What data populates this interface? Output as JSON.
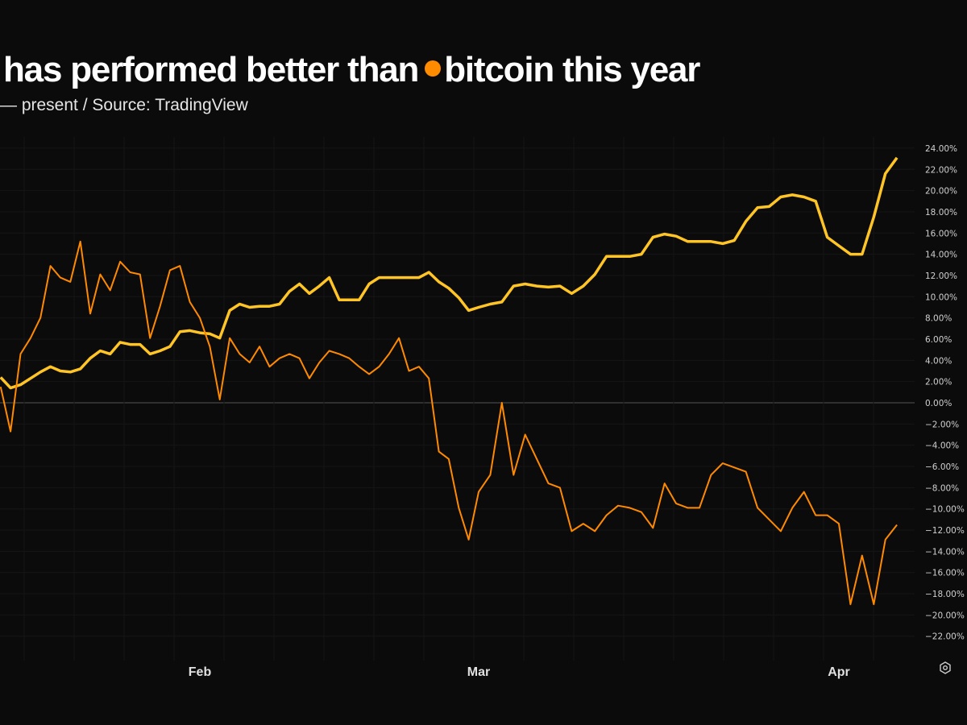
{
  "chart_data": {
    "type": "line",
    "title": {
      "part1": "has performed better than",
      "part2": "bitcoin this year"
    },
    "subtitle": "— present / Source: TradingView",
    "xlabel": "",
    "ylabel": "",
    "x_ticks": [
      {
        "date": "2025-02-01",
        "label": "Feb"
      },
      {
        "date": "2025-03-01",
        "label": "Mar"
      },
      {
        "date": "2025-04-01",
        "label": "Apr"
      }
    ],
    "ylim": [
      -24,
      26
    ],
    "y_ticks": [
      24,
      22,
      20,
      18,
      16,
      14,
      12,
      10,
      8,
      6,
      4,
      2,
      0,
      -2,
      -4,
      -6,
      -8,
      -10,
      -12,
      -14,
      -16,
      -18,
      -20,
      -22
    ],
    "y_tick_format": "percent-2dp",
    "grid": true,
    "zero_line": true,
    "dates": [
      "2025-01-12",
      "2025-01-13",
      "2025-01-14",
      "2025-01-15",
      "2025-01-16",
      "2025-01-17",
      "2025-01-18",
      "2025-01-19",
      "2025-01-20",
      "2025-01-21",
      "2025-01-22",
      "2025-01-23",
      "2025-01-24",
      "2025-01-25",
      "2025-01-26",
      "2025-01-27",
      "2025-01-28",
      "2025-01-29",
      "2025-01-30",
      "2025-01-31",
      "2025-02-01",
      "2025-02-02",
      "2025-02-03",
      "2025-02-04",
      "2025-02-05",
      "2025-02-06",
      "2025-02-07",
      "2025-02-08",
      "2025-02-09",
      "2025-02-10",
      "2025-02-11",
      "2025-02-12",
      "2025-02-13",
      "2025-02-14",
      "2025-02-15",
      "2025-02-16",
      "2025-02-17",
      "2025-02-18",
      "2025-02-19",
      "2025-02-20",
      "2025-02-21",
      "2025-02-22",
      "2025-02-23",
      "2025-02-24",
      "2025-02-25",
      "2025-02-26",
      "2025-02-27",
      "2025-02-28",
      "2025-03-01",
      "2025-03-02",
      "2025-03-03",
      "2025-03-04",
      "2025-03-05",
      "2025-03-06",
      "2025-03-07",
      "2025-03-08",
      "2025-03-09",
      "2025-03-10",
      "2025-03-11",
      "2025-03-12",
      "2025-03-13",
      "2025-03-14",
      "2025-03-15",
      "2025-03-16",
      "2025-03-17",
      "2025-03-18",
      "2025-03-19",
      "2025-03-20",
      "2025-03-21",
      "2025-03-22",
      "2025-03-23",
      "2025-03-24",
      "2025-03-25",
      "2025-03-26",
      "2025-03-27",
      "2025-03-28",
      "2025-03-29",
      "2025-03-30",
      "2025-03-31",
      "2025-04-01",
      "2025-04-02",
      "2025-04-03",
      "2025-04-04",
      "2025-04-05",
      "2025-04-06"
    ],
    "series": [
      {
        "color": "#ffc425",
        "values": [
          2.4,
          1.4,
          1.7,
          2.3,
          2.9,
          3.4,
          3.0,
          2.9,
          3.2,
          4.2,
          4.9,
          4.6,
          5.7,
          5.5,
          5.5,
          4.6,
          4.9,
          5.3,
          6.7,
          6.8,
          6.6,
          6.5,
          6.1,
          8.7,
          9.3,
          9.0,
          9.1,
          9.1,
          9.3,
          10.5,
          11.2,
          10.3,
          11.0,
          11.8,
          9.7,
          9.7,
          9.7,
          11.2,
          11.8,
          11.8,
          11.8,
          11.8,
          11.8,
          12.3,
          11.4,
          10.8,
          9.9,
          8.7,
          9.0,
          9.3,
          9.5,
          11.0,
          11.2,
          11.0,
          10.9,
          11.0,
          10.3,
          11.0,
          12.1,
          13.8,
          13.8,
          13.8,
          14.0,
          15.6,
          15.9,
          15.7,
          15.2,
          15.2,
          15.2,
          15.0,
          15.3,
          17.1,
          18.4,
          18.5,
          19.4,
          19.6,
          19.4,
          19.0,
          15.6,
          14.8,
          14.0,
          14.0,
          17.5,
          21.6,
          23.1
        ]
      },
      {
        "name": "bitcoin",
        "color": "#ff8a00",
        "values": [
          1.5,
          -2.7,
          4.6,
          6.1,
          8.0,
          12.9,
          11.8,
          11.4,
          15.2,
          8.4,
          12.1,
          10.6,
          13.3,
          12.3,
          12.1,
          6.1,
          9.1,
          12.5,
          12.9,
          9.5,
          8.0,
          5.3,
          0.3,
          6.1,
          4.6,
          3.8,
          5.3,
          3.4,
          4.2,
          4.6,
          4.2,
          2.3,
          3.8,
          4.9,
          4.6,
          4.2,
          3.4,
          2.7,
          3.4,
          4.6,
          6.1,
          3.0,
          3.4,
          2.3,
          -4.6,
          -5.3,
          -9.9,
          -12.9,
          -8.4,
          -6.8,
          0.0,
          -6.8,
          -3.0,
          -5.3,
          -7.6,
          -8.0,
          -12.1,
          -11.4,
          -12.1,
          -10.6,
          -9.7,
          -9.9,
          -10.3,
          -11.8,
          -7.6,
          -9.5,
          -9.9,
          -9.9,
          -6.8,
          -5.7,
          -6.1,
          -6.5,
          -9.9,
          -11.0,
          -12.1,
          -9.9,
          -8.4,
          -10.6,
          -10.6,
          -11.4,
          -19.0,
          -14.4,
          -19.0,
          -12.9,
          -11.5
        ]
      }
    ]
  },
  "icons": {
    "bottom_right": "settings-icon"
  }
}
